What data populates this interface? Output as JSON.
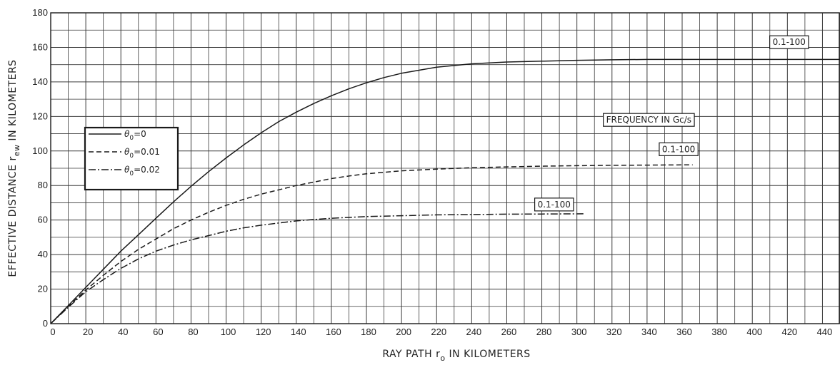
{
  "chart_data": {
    "type": "line",
    "xlabel_main": "RAY PATH",
    "xlabel_var": "r",
    "xlabel_sub": "o",
    "xlabel_tail": "IN KILOMETERS",
    "ylabel_main": "EFFECTIVE DISTANCE",
    "ylabel_var": "r",
    "ylabel_sub": "ew",
    "ylabel_tail": "IN KILOMETERS",
    "xlim": [
      0,
      450
    ],
    "ylim": [
      0,
      180
    ],
    "x_ticks": [
      0,
      20,
      40,
      60,
      80,
      100,
      120,
      140,
      160,
      180,
      200,
      220,
      240,
      260,
      280,
      300,
      320,
      340,
      360,
      380,
      400,
      420,
      440
    ],
    "y_ticks": [
      0,
      20,
      40,
      60,
      80,
      100,
      120,
      140,
      160,
      180
    ],
    "x_tick_labels": [
      "0",
      "20",
      "40",
      "60",
      "80",
      "100",
      "120",
      "140",
      "160",
      "180",
      "200",
      "220",
      "240",
      "260",
      "280",
      "300",
      "320",
      "340",
      "360",
      "380",
      "400",
      "420",
      "440"
    ],
    "y_tick_labels": [
      "0",
      "20",
      "40",
      "60",
      "80",
      "100",
      "120",
      "140",
      "160",
      "180"
    ],
    "grid": true,
    "legend_placement": "upper-left",
    "series": [
      {
        "name_sym": "θ",
        "name_sub": "0",
        "name_val": "=0",
        "style": "solid",
        "x": [
          0,
          10,
          20,
          30,
          40,
          50,
          60,
          70,
          80,
          90,
          100,
          110,
          120,
          130,
          140,
          150,
          160,
          170,
          180,
          190,
          200,
          220,
          240,
          260,
          280,
          300,
          320,
          340,
          360,
          380,
          400,
          420,
          440,
          450
        ],
        "y": [
          0,
          10.5,
          21,
          31.5,
          42,
          51.5,
          61,
          70.5,
          79.5,
          88,
          96,
          103.5,
          110.5,
          117,
          122.5,
          127.5,
          132,
          136,
          139.5,
          142.5,
          145,
          148.5,
          150.5,
          151.5,
          152,
          152.5,
          152.8,
          153,
          153,
          153,
          153,
          153,
          153,
          153
        ]
      },
      {
        "name_sym": "θ",
        "name_sub": "0",
        "name_val": "=0.01",
        "style": "dashed",
        "x": [
          0,
          10,
          20,
          30,
          40,
          50,
          60,
          70,
          80,
          90,
          100,
          110,
          120,
          130,
          140,
          150,
          160,
          170,
          180,
          200,
          220,
          240,
          260,
          280,
          300,
          320,
          340,
          366
        ],
        "y": [
          0,
          10,
          19.5,
          28,
          36,
          43,
          49,
          55,
          60,
          64.5,
          68.5,
          72,
          75,
          77.5,
          80,
          82,
          84,
          85.5,
          86.8,
          88.5,
          89.5,
          90.3,
          90.8,
          91.2,
          91.5,
          91.7,
          91.8,
          92
        ]
      },
      {
        "name_sym": "θ",
        "name_sub": "0",
        "name_val": "=0.02",
        "style": "dashdot",
        "x": [
          0,
          10,
          20,
          30,
          40,
          50,
          60,
          70,
          80,
          90,
          100,
          110,
          120,
          130,
          140,
          150,
          160,
          170,
          180,
          200,
          220,
          240,
          260,
          280,
          304
        ],
        "y": [
          0,
          9.5,
          18.5,
          25.5,
          32,
          37.5,
          42,
          45.5,
          48.5,
          51,
          53.5,
          55.5,
          57,
          58.3,
          59.5,
          60.3,
          61,
          61.5,
          62,
          62.5,
          63,
          63.2,
          63.4,
          63.5,
          63.6
        ]
      }
    ],
    "annotations": [
      {
        "text": "0.1-100",
        "x": 421,
        "y": 163,
        "boxed": true
      },
      {
        "text": "0.1-100",
        "x": 358,
        "y": 101,
        "boxed": true
      },
      {
        "text": "0.1-100",
        "x": 287,
        "y": 69,
        "boxed": true
      },
      {
        "text": "FREQUENCY IN Gc/s",
        "x": 341,
        "y": 118,
        "boxed": true
      }
    ],
    "colors": {
      "line": "#1a1a1a",
      "grid": "#3a3a3a",
      "background": "#ffffff"
    }
  }
}
